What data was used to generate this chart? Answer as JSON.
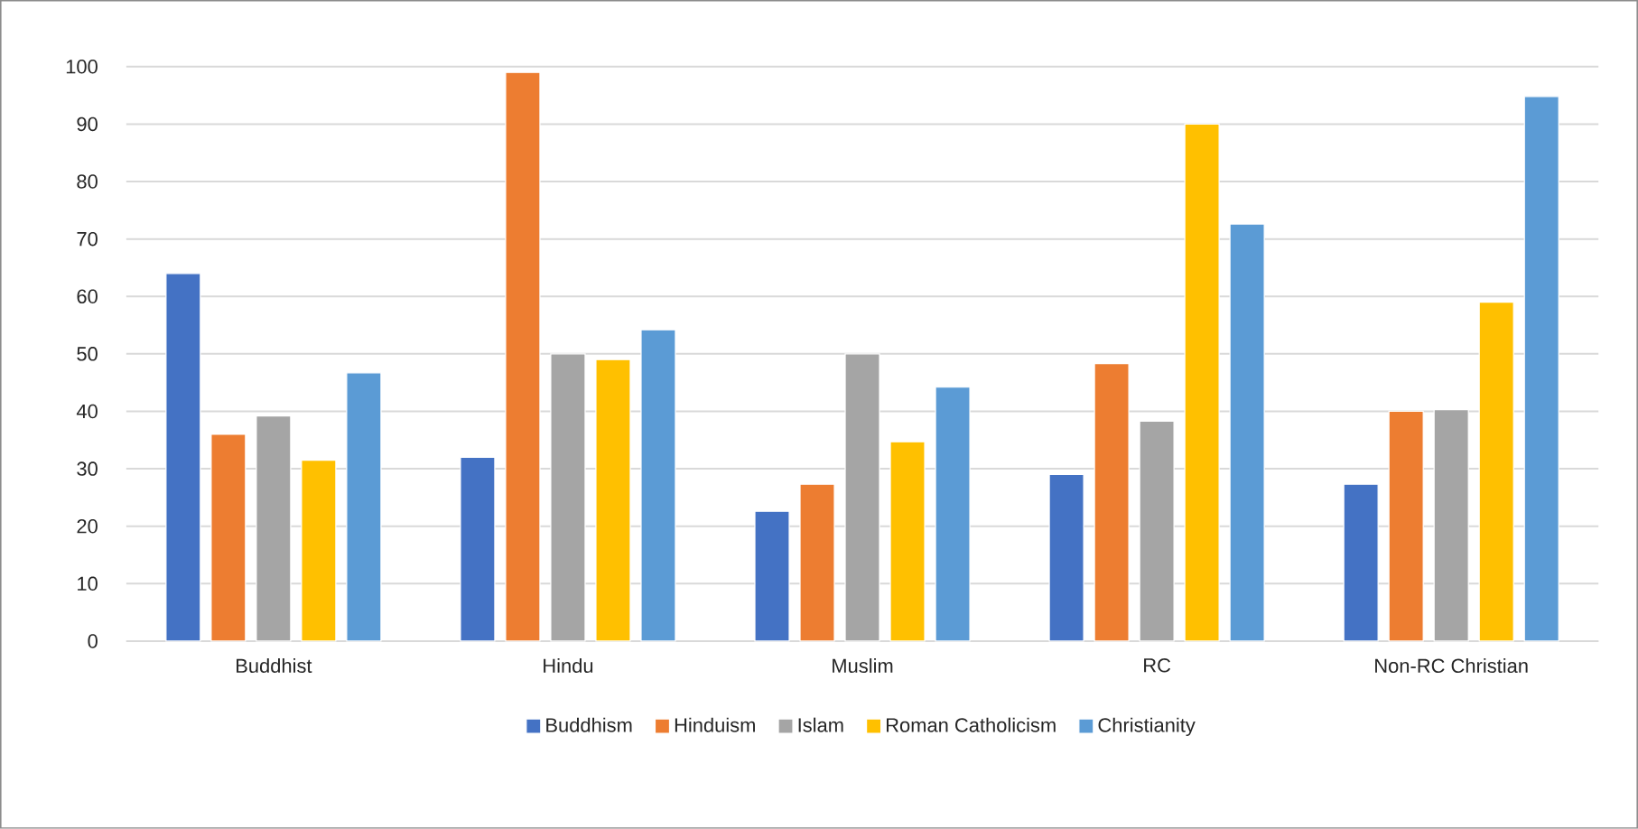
{
  "chart_data": {
    "type": "bar",
    "categories": [
      "Buddhist",
      "Hindu",
      "Muslim",
      "RC",
      "Non-RC Christian"
    ],
    "series": [
      {
        "name": "Buddhism",
        "color": "#4472c4",
        "values": [
          64,
          32,
          22.6,
          29,
          27.3
        ]
      },
      {
        "name": "Hinduism",
        "color": "#ed7d31",
        "values": [
          36,
          99,
          27.3,
          48.3,
          40
        ]
      },
      {
        "name": "Islam",
        "color": "#a5a5a5",
        "values": [
          39.2,
          50,
          50,
          38.3,
          40.3
        ]
      },
      {
        "name": "Roman Catholicism",
        "color": "#ffc000",
        "values": [
          31.5,
          49,
          34.7,
          90,
          59
        ]
      },
      {
        "name": "Christianity",
        "color": "#5b9bd5",
        "values": [
          46.7,
          54.2,
          44.2,
          72.6,
          94.8
        ]
      }
    ],
    "ylim": [
      0,
      100
    ],
    "yticks": [
      0,
      10,
      20,
      30,
      40,
      50,
      60,
      70,
      80,
      90,
      100
    ],
    "grid": "y",
    "legend": "bottom"
  }
}
